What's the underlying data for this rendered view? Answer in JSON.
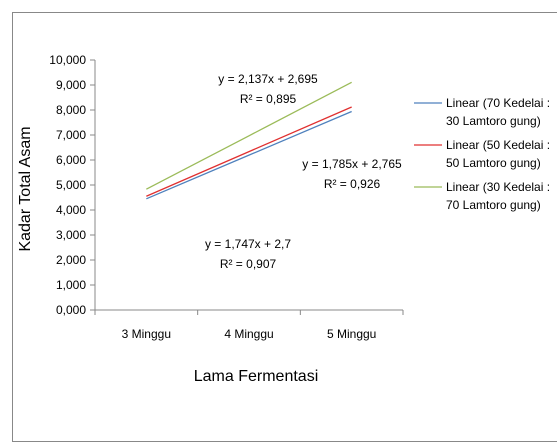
{
  "chart_data": {
    "type": "line",
    "title": "",
    "xlabel": "Lama Fermentasi",
    "ylabel": "Kadar Total Asam",
    "categories": [
      "3 Minggu",
      "4 Minggu",
      "5 Minggu"
    ],
    "ylim": [
      0,
      10000
    ],
    "yticks": [
      "0,000",
      "1,000",
      "2,000",
      "3,000",
      "4,000",
      "5,000",
      "6,000",
      "7,000",
      "8,000",
      "9,000",
      "10,000"
    ],
    "grid": false,
    "legend_position": "right",
    "series": [
      {
        "name_lines": [
          "Linear (70 Kedelai :",
          "30 Lamtoro gung)"
        ],
        "color": "#4F81BD",
        "values": [
          4.447,
          6.194,
          7.941
        ],
        "equation": "y = 1,747x + 2,7",
        "r2": "R² = 0,907"
      },
      {
        "name_lines": [
          "Linear (50 Kedelai :",
          "50 Lamtoro gung)"
        ],
        "color": "#E03030",
        "values": [
          4.55,
          6.335,
          8.12
        ],
        "equation": "y = 1,785x + 2,765",
        "r2": "R² = 0,926"
      },
      {
        "name_lines": [
          "Linear (30 Kedelai :",
          "70 Lamtoro gung)"
        ],
        "color": "#9BBB59",
        "values": [
          4.832,
          6.969,
          9.106
        ],
        "equation": "y = 2,137x + 2,695",
        "r2": "R² = 0,895"
      }
    ]
  }
}
